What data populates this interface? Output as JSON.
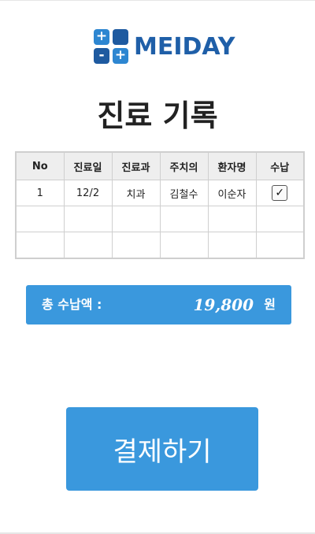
{
  "brand": {
    "logo_text": "MEIDAY",
    "logo_glyphs": [
      "+",
      "",
      "-",
      "+"
    ]
  },
  "page": {
    "title": "진료 기록"
  },
  "table": {
    "headers": [
      "No",
      "진료일",
      "진료과",
      "주치의",
      "환자명",
      "수납"
    ],
    "rows": [
      {
        "no": "1",
        "date": "12/2",
        "department": "치과",
        "doctor": "김철수",
        "patient": "이순자",
        "paid": true,
        "paid_mark": "✓"
      },
      {
        "no": "",
        "date": "",
        "department": "",
        "doctor": "",
        "patient": "",
        "paid": false,
        "paid_mark": ""
      },
      {
        "no": "",
        "date": "",
        "department": "",
        "doctor": "",
        "patient": "",
        "paid": false,
        "paid_mark": ""
      }
    ]
  },
  "total": {
    "label": "총 수납액 :",
    "amount": "19,800",
    "unit": "원"
  },
  "actions": {
    "pay_label": "결제하기"
  },
  "colors": {
    "accent": "#3a98dd",
    "brand": "#1f5fa8",
    "header_bg": "#eeeeee"
  }
}
